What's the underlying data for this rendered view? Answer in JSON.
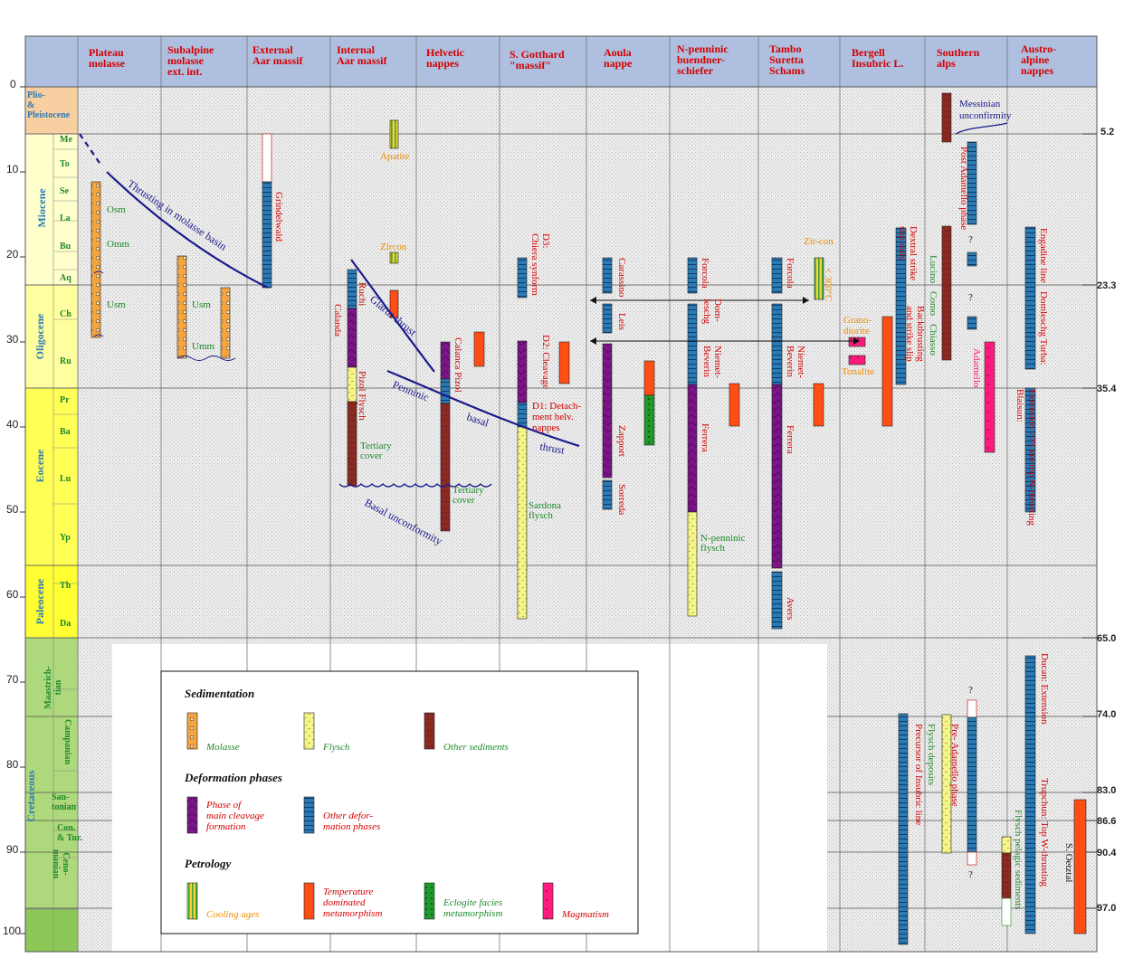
{
  "header": {
    "columns": [
      "Plateau\nmolasse",
      "Subalpine\nmolasse\next.    int.",
      "External\nAar massif",
      "Internal\nAar massif",
      "Helvetic\nnappes",
      "S. Gotthard\n\"massif\"",
      "Aoula\nnappe",
      "N-penninic\nbuendner-\nschiefer",
      "Tambo\nSuretta\nSchams",
      "Bergell\nInsubric L.",
      "Southern\nalps",
      "Austro-\nalpine\nnappes"
    ]
  },
  "axis": {
    "left_ticks": [
      "0",
      "10",
      "20",
      "30",
      "40",
      "50",
      "60",
      "70",
      "80",
      "90",
      "100"
    ],
    "right_ticks": [
      "5.2",
      "23.3",
      "35.4",
      "65.0",
      "74.0",
      "83.0",
      "86.6",
      "90.4",
      "97.0"
    ]
  },
  "epochs": {
    "plio": "Plio-\n&\nPleistocene",
    "miocene": "Miocene",
    "oligocene": "Oligocene",
    "eocene": "Eocene",
    "paleocene": "Paleocene",
    "cretaceous": "Cretaceous"
  },
  "stages": [
    "Me",
    "To",
    "Se",
    "La",
    "Bu",
    "Aq",
    "Ch",
    "Ru",
    "Pr",
    "Ba",
    "Lu",
    "Yp",
    "Th",
    "Da",
    "Maastrich-\ntian",
    "Campanian",
    "San-\ntonian",
    "Con.\n& Tur.",
    "Ceno-\nmanian"
  ],
  "labels": {
    "osm": "Osm",
    "omm": "Omm",
    "usm": "Usm",
    "usm2": "Usm",
    "umm": "Umm",
    "thrust_molasse": "Thrusting in molasse basin",
    "grindelwald": "Grindelwald",
    "apatite": "Apatite",
    "zircon": "Zircon",
    "ruchi": "Ruchi",
    "calanda": "Calanda",
    "pizol_flysch": "Pizol  Flysch",
    "tertiary_cover1": "Tertiary\ncover",
    "glarus_thrust": "Glarus thrust",
    "penninic_basal_thrust_1": "Penninic",
    "penninic_basal_thrust_2": "basal",
    "penninic_basal_thrust_3": "thrust",
    "basal_unconformity": "Basal unconformity",
    "calanca_pizol": "Calanca  Pizol",
    "tertiary_cover2": "Tertiary\ncover",
    "d3": "D3:\nChiera synform",
    "d2": "D2: Cleavage",
    "d1": "D1: Detach-\nment helv.\nnappes",
    "sardona": "Sardona\nflysch",
    "carassino": "Carassino",
    "leis": "Leis",
    "zapport": "Zapport",
    "sorreda": "Sorreda",
    "forcola1": "Forcola",
    "domleschg": "Dom-\nleschg",
    "niemet_beverin1": "Niemet-\nBeverin",
    "ferrera1": "Ferrera",
    "npenninic_flysch": "N-penninic\nflysch",
    "forcola2": "Forcola",
    "niemet_beverin2": "Niemet-\nBeverin",
    "ferrera2": "Ferrera",
    "avers": "Avers",
    "zircon2": "Zir-con",
    "lt300": "< 300°C",
    "granodiorite": "Grano-\ndiorite",
    "tonalite": "Tonalite",
    "dextral": "Dextral strike\nslip only",
    "backthrusting": "Backthrusting\nand strike slip",
    "lucino": "Lucino",
    "como": "Como",
    "chiasso": "Chiasso",
    "messinian": "Messinian\nunconfirmity",
    "post_adamello": "Post Adamello phase",
    "adamello": "Adamello",
    "q1": "?",
    "q2": "?",
    "q3": "?",
    "q4": "?",
    "engadine": "Engadine line",
    "domleschg_turba": "Domleschg Turba:",
    "blaisun1": "Blaisun:",
    "blaisun2": "Extension >75 km top N-thrusting",
    "ducan": "Ducan: Extension",
    "trupchun": "Trupchun: Top W-thrusting",
    "s_oetztal": "S. Oetztal",
    "flysch_pelagic": "Flysch pelagic sediments",
    "precursor": "Precursor of Insubric line",
    "flysch_deposits": "Flysch deposits",
    "pre_adamello": "Pre- Adamello phase"
  },
  "legend": {
    "sedimentation_title": "Sedimentation",
    "molasse": "Molasse",
    "flysch": "Flysch",
    "other_sediments": "Other sediments",
    "deformation_title": "Deformation phases",
    "main_cleavage": "Phase of\nmain cleavage\nformation",
    "other_deformation": "Other defor-\nmation phases",
    "petrology_title": "Petrology",
    "cooling": "Cooling ages",
    "temperature": "Temperature\ndominated\nmetamorphism",
    "eclogite": "Eclogite facies\nmetamorphism",
    "magmatism": "Magmatism"
  },
  "colors": {
    "header_bg": "#aebfe0",
    "plio": "#f7cfa0",
    "miocene": "#ffffcc",
    "oligocene": "#ffffa0",
    "eocene": "#ffff55",
    "paleocene": "#ffff33",
    "cretaceous": "#aed87c",
    "cret_dark": "#8cc858",
    "molasse": "#f5a540",
    "flysch": "#f5f589",
    "sediment": "#8b2a22",
    "cleavage": "#7a1685",
    "deformation": "#2c7ab4",
    "temperature": "#ff4e14",
    "magma": "#ff1a7e",
    "eclogite": "#1e9a2a",
    "text_red": "#d40000",
    "text_green": "#1f8a2a",
    "text_orange": "#f08d00",
    "thrust": "#1a1a8c"
  }
}
